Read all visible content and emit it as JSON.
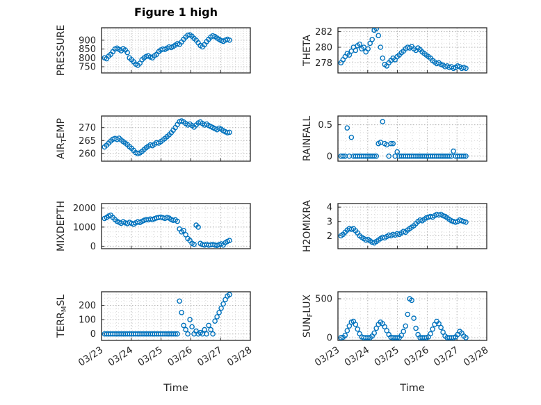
{
  "figure": {
    "title": "Figure 1 high",
    "xlabel": "Time"
  },
  "chart_data": {
    "type": "scatter",
    "marker": "open-circle",
    "marker_color": "#0072BD",
    "grid": "major+minor dotted",
    "xlim": [
      0,
      5
    ],
    "xticks": [
      0,
      1,
      2,
      3,
      4,
      5
    ],
    "xtick_labels": [
      "03/23",
      "03/24",
      "03/25",
      "03/26",
      "03/27",
      "03/28"
    ],
    "xlabel": "Time",
    "x_days": [
      0.1,
      0.17,
      0.24,
      0.31,
      0.38,
      0.45,
      0.52,
      0.59,
      0.66,
      0.73,
      0.8,
      0.87,
      0.94,
      1.01,
      1.08,
      1.15,
      1.22,
      1.29,
      1.36,
      1.43,
      1.5,
      1.57,
      1.64,
      1.71,
      1.78,
      1.85,
      1.92,
      1.99,
      2.06,
      2.13,
      2.2,
      2.27,
      2.34,
      2.41,
      2.48,
      2.55,
      2.62,
      2.69,
      2.76,
      2.83,
      2.9,
      2.97,
      3.04,
      3.11,
      3.18,
      3.25,
      3.32,
      3.39,
      3.46,
      3.53,
      3.6,
      3.67,
      3.74,
      3.81,
      3.88,
      3.95,
      4.02,
      4.09,
      4.16,
      4.23,
      4.3
    ],
    "subplots": [
      {
        "id": "pressure",
        "ylabel_parts": [
          {
            "t": "PRESSURE",
            "sub": false
          }
        ],
        "ytick_vals": [
          750,
          800,
          850,
          900
        ],
        "ytick_labels": [
          "750",
          "800",
          "850",
          "900"
        ],
        "ylim": [
          715,
          970
        ],
        "y": [
          800,
          795,
          810,
          820,
          835,
          850,
          855,
          848,
          840,
          852,
          845,
          830,
          800,
          790,
          778,
          765,
          758,
          770,
          790,
          800,
          808,
          812,
          805,
          800,
          812,
          820,
          835,
          845,
          850,
          848,
          855,
          862,
          858,
          865,
          872,
          880,
          876,
          890,
          905,
          918,
          928,
          930,
          922,
          910,
          900,
          885,
          870,
          862,
          875,
          892,
          905,
          918,
          925,
          920,
          912,
          905,
          898,
          893,
          900,
          905,
          900
        ]
      },
      {
        "id": "theta",
        "ylabel_parts": [
          {
            "t": "THETA",
            "sub": false
          }
        ],
        "ytick_vals": [
          278,
          280,
          282
        ],
        "ytick_labels": [
          "278",
          "280",
          "282"
        ],
        "ylim": [
          276.7,
          282.5
        ],
        "y": [
          278.0,
          278.4,
          278.8,
          279.2,
          279.0,
          279.5,
          280.0,
          279.6,
          280.2,
          280.4,
          279.8,
          280.0,
          279.4,
          279.8,
          280.5,
          281.0,
          282.2,
          282.4,
          281.5,
          280.0,
          278.6,
          277.8,
          277.6,
          278.0,
          278.3,
          278.6,
          278.4,
          278.8,
          279.0,
          279.3,
          279.5,
          279.8,
          280.0,
          279.9,
          280.1,
          279.8,
          279.6,
          279.9,
          279.7,
          279.4,
          279.2,
          279.0,
          278.8,
          278.6,
          278.3,
          278.1,
          277.9,
          278.0,
          277.8,
          277.7,
          277.5,
          277.6,
          277.4,
          277.5,
          277.3,
          277.4,
          277.6,
          277.5,
          277.3,
          277.4,
          277.3
        ]
      },
      {
        "id": "airtemp",
        "ylabel_parts": [
          {
            "t": "AIR",
            "sub": false
          },
          {
            "t": "T",
            "sub": true
          },
          {
            "t": "EMP",
            "sub": false
          }
        ],
        "ytick_vals": [
          260,
          265,
          270
        ],
        "ytick_labels": [
          "260",
          "265",
          "270"
        ],
        "ylim": [
          257,
          274.5
        ],
        "y": [
          262.5,
          263.2,
          264.0,
          264.8,
          265.5,
          265.8,
          265.4,
          265.9,
          265.2,
          264.6,
          264.0,
          263.4,
          262.6,
          262.0,
          261.2,
          260.3,
          259.9,
          260.2,
          260.8,
          261.5,
          262.2,
          262.8,
          263.3,
          263.0,
          263.6,
          264.2,
          264.0,
          264.6,
          265.2,
          265.8,
          266.5,
          267.2,
          268.0,
          269.0,
          270.0,
          271.2,
          272.3,
          272.6,
          272.2,
          271.6,
          271.0,
          271.4,
          270.8,
          270.2,
          271.0,
          271.8,
          272.2,
          271.6,
          271.0,
          271.4,
          270.8,
          270.4,
          270.0,
          269.6,
          269.2,
          269.8,
          269.4,
          268.8,
          268.4,
          268.0,
          268.2
        ]
      },
      {
        "id": "rainfall",
        "ylabel_parts": [
          {
            "t": "RAINFALL",
            "sub": false
          }
        ],
        "ytick_vals": [
          0,
          0.5
        ],
        "ytick_labels": [
          "0",
          "0.5"
        ],
        "ylim": [
          -0.08,
          0.64
        ],
        "y": [
          0,
          0,
          0,
          0.45,
          0,
          0.3,
          0,
          0,
          0,
          0,
          0,
          0,
          0,
          0,
          0,
          0,
          0,
          0,
          0.2,
          0.22,
          0.55,
          0.2,
          0.18,
          0,
          0.2,
          0.2,
          0,
          0.07,
          0,
          0,
          0,
          0,
          0,
          0,
          0,
          0,
          0,
          0,
          0,
          0,
          0,
          0,
          0,
          0,
          0,
          0,
          0,
          0,
          0,
          0,
          0,
          0,
          0,
          0,
          0.08,
          0,
          0,
          0,
          0,
          0,
          0
        ]
      },
      {
        "id": "mixdepth",
        "ylabel_parts": [
          {
            "t": "MIXDEPTH",
            "sub": false
          }
        ],
        "ytick_vals": [
          0,
          1000,
          2000
        ],
        "ytick_labels": [
          "0",
          "1000",
          "2000"
        ],
        "ylim": [
          -130,
          2230
        ],
        "y": [
          1450,
          1500,
          1580,
          1620,
          1500,
          1400,
          1300,
          1250,
          1200,
          1280,
          1220,
          1180,
          1250,
          1200,
          1150,
          1220,
          1280,
          1240,
          1300,
          1350,
          1400,
          1380,
          1420,
          1390,
          1440,
          1480,
          1500,
          1520,
          1490,
          1450,
          1500,
          1470,
          1400,
          1350,
          1380,
          1300,
          900,
          750,
          820,
          600,
          400,
          300,
          150,
          100,
          1100,
          1000,
          150,
          80,
          60,
          100,
          50,
          70,
          90,
          60,
          40,
          80,
          120,
          60,
          180,
          250,
          300
        ]
      },
      {
        "id": "h2omixra",
        "ylabel_parts": [
          {
            "t": "H2OMIXRA",
            "sub": false
          }
        ],
        "ytick_vals": [
          2,
          3,
          4
        ],
        "ytick_labels": [
          "2",
          "3",
          "4"
        ],
        "ylim": [
          1.1,
          4.25
        ],
        "y": [
          2.0,
          2.1,
          2.25,
          2.4,
          2.5,
          2.45,
          2.5,
          2.35,
          2.2,
          2.0,
          1.9,
          1.8,
          1.7,
          1.75,
          1.65,
          1.55,
          1.5,
          1.6,
          1.7,
          1.8,
          1.9,
          1.85,
          1.95,
          2.05,
          2.0,
          2.1,
          2.05,
          2.15,
          2.1,
          2.2,
          2.3,
          2.25,
          2.4,
          2.5,
          2.6,
          2.7,
          2.85,
          3.0,
          3.1,
          3.05,
          3.15,
          3.25,
          3.3,
          3.35,
          3.3,
          3.4,
          3.5,
          3.45,
          3.5,
          3.4,
          3.35,
          3.25,
          3.15,
          3.05,
          3.0,
          2.95,
          3.0,
          3.1,
          3.05,
          3.0,
          2.95
        ]
      },
      {
        "id": "terr-msl",
        "ylabel_parts": [
          {
            "t": "TERR",
            "sub": false
          },
          {
            "t": "M",
            "sub": true
          },
          {
            "t": "SL",
            "sub": false
          }
        ],
        "ytick_vals": [
          0,
          100,
          200
        ],
        "ytick_labels": [
          "0",
          "100",
          "200"
        ],
        "ylim": [
          -45,
          295
        ],
        "y": [
          0,
          0,
          0,
          0,
          0,
          0,
          0,
          0,
          0,
          0,
          0,
          0,
          0,
          0,
          0,
          0,
          0,
          0,
          0,
          0,
          0,
          0,
          0,
          0,
          0,
          0,
          0,
          0,
          0,
          0,
          0,
          0,
          0,
          0,
          0,
          0,
          230,
          150,
          60,
          30,
          0,
          100,
          50,
          0,
          20,
          0,
          10,
          0,
          30,
          0,
          60,
          30,
          0,
          90,
          120,
          150,
          180,
          210,
          240,
          265,
          275
        ]
      },
      {
        "id": "sun-flux",
        "ylabel_parts": [
          {
            "t": "SUN",
            "sub": false
          },
          {
            "t": "F",
            "sub": true
          },
          {
            "t": "LUX",
            "sub": false
          }
        ],
        "ytick_vals": [
          0,
          500
        ],
        "ytick_labels": [
          "0",
          "500"
        ],
        "ylim": [
          -35,
          590
        ],
        "y": [
          0,
          5,
          30,
          90,
          150,
          200,
          210,
          170,
          110,
          50,
          10,
          0,
          0,
          0,
          0,
          20,
          60,
          120,
          170,
          200,
          180,
          140,
          90,
          40,
          5,
          0,
          0,
          0,
          0,
          30,
          80,
          150,
          300,
          500,
          480,
          250,
          120,
          40,
          0,
          0,
          0,
          0,
          10,
          50,
          110,
          170,
          210,
          180,
          130,
          70,
          20,
          0,
          0,
          0,
          0,
          10,
          40,
          80,
          60,
          20,
          0
        ]
      }
    ]
  }
}
